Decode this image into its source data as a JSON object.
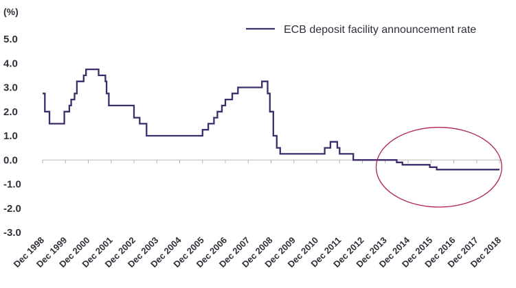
{
  "chart_data": {
    "type": "line",
    "title": "",
    "xlabel": "",
    "ylabel": "(%)",
    "ylim": [
      -3.0,
      5.0
    ],
    "y_ticks": [
      "5.0",
      "4.0",
      "3.0",
      "2.0",
      "1.0",
      "0.0",
      "-1.0",
      "-2.0",
      "-3.0"
    ],
    "y_tick_values": [
      5,
      4,
      3,
      2,
      1,
      0,
      -1,
      -2,
      -3
    ],
    "x_tick_labels": [
      "Dec 1998",
      "Dec 1999",
      "Dec 2000",
      "Dec 2001",
      "Dec 2002",
      "Dec 2003",
      "Dec 2004",
      "Dec 2005",
      "Dec 2006",
      "Dec 2007",
      "Dec 2008",
      "Dec 2009",
      "Dec 2010",
      "Dec 2011",
      "Dec 2012",
      "Dec 2013",
      "Dec 2014",
      "Dec 2015",
      "Dec 2016",
      "Dec 2017",
      "Dec 2018"
    ],
    "xlim": [
      1998.95,
      2018.95
    ],
    "grid": false,
    "legend_position": "top-right",
    "colors": {
      "line": "#3d2b6b",
      "highlight": "#b0204f",
      "axis": "#b7b7b7",
      "text": "#2f2f3a"
    },
    "series": [
      {
        "name": "ECB deposit facility announcement rate",
        "step": true,
        "points": [
          [
            1998.95,
            2.75
          ],
          [
            1999.02,
            2.75
          ],
          [
            1999.05,
            2.0
          ],
          [
            1999.25,
            1.5
          ],
          [
            1999.9,
            2.0
          ],
          [
            2000.12,
            2.25
          ],
          [
            2000.2,
            2.5
          ],
          [
            2000.35,
            2.75
          ],
          [
            2000.45,
            3.25
          ],
          [
            2000.75,
            3.5
          ],
          [
            2000.85,
            3.75
          ],
          [
            2001.4,
            3.5
          ],
          [
            2001.7,
            3.25
          ],
          [
            2001.75,
            2.75
          ],
          [
            2001.85,
            2.25
          ],
          [
            2002.95,
            1.75
          ],
          [
            2003.2,
            1.5
          ],
          [
            2003.5,
            1.0
          ],
          [
            2005.95,
            1.25
          ],
          [
            2006.2,
            1.5
          ],
          [
            2006.45,
            1.75
          ],
          [
            2006.6,
            2.0
          ],
          [
            2006.8,
            2.25
          ],
          [
            2006.95,
            2.5
          ],
          [
            2007.25,
            2.75
          ],
          [
            2007.5,
            3.0
          ],
          [
            2008.55,
            3.25
          ],
          [
            2008.8,
            2.75
          ],
          [
            2008.9,
            2.0
          ],
          [
            2009.05,
            1.0
          ],
          [
            2009.2,
            0.5
          ],
          [
            2009.35,
            0.25
          ],
          [
            2011.3,
            0.5
          ],
          [
            2011.55,
            0.75
          ],
          [
            2011.85,
            0.5
          ],
          [
            2011.95,
            0.25
          ],
          [
            2012.55,
            0.0
          ],
          [
            2014.45,
            -0.1
          ],
          [
            2014.7,
            -0.2
          ],
          [
            2015.9,
            -0.3
          ],
          [
            2016.2,
            -0.4
          ],
          [
            2018.95,
            -0.4
          ]
        ]
      }
    ],
    "annotations": [
      {
        "type": "ellipse",
        "description": "highlight",
        "cx": 2016.3,
        "cy": -0.3,
        "rx": 2.75,
        "ry": 1.65
      }
    ]
  }
}
